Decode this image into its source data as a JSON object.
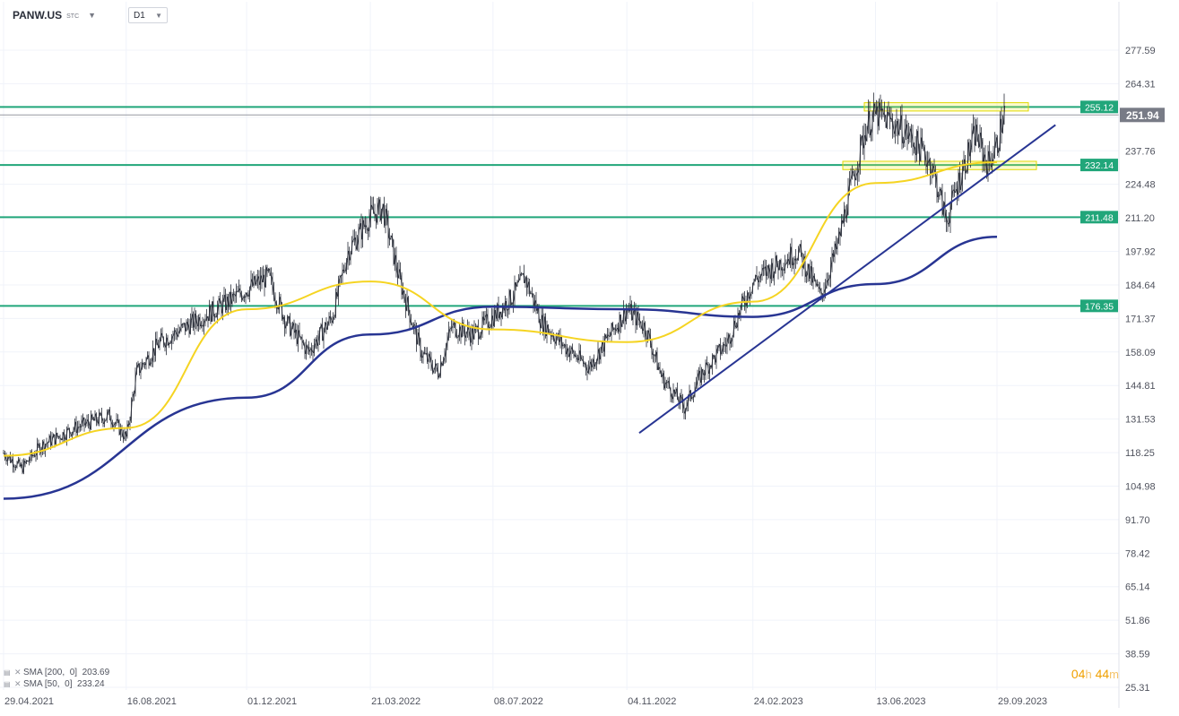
{
  "toolbar": {
    "symbol": "PANW.US",
    "symbol_sub": "STC",
    "timeframe": "D1"
  },
  "legend": {
    "sma200": "SMA [200,  0]  203.69",
    "sma50": "SMA [50,  0]  233.24"
  },
  "countdown": {
    "hours": "04",
    "h_unit": "h",
    "minutes": "44",
    "m_unit": "m"
  },
  "colors": {
    "sma200": "#283593",
    "sma50": "#f5d422",
    "levels": "#21a67a",
    "trendline": "#283593",
    "zones": "#f0ec38",
    "price_tag": "#787b86"
  },
  "chart_data": {
    "type": "candlestick",
    "symbol": "PANW.US",
    "timeframe": "D1",
    "y_axis_ticks": [
      277.59,
      264.31,
      251.03,
      237.76,
      224.48,
      211.2,
      197.92,
      184.64,
      171.37,
      158.09,
      144.81,
      131.53,
      118.25,
      104.98,
      91.7,
      78.42,
      65.14,
      51.86,
      38.59,
      25.31
    ],
    "ylim": [
      25.31,
      277.59
    ],
    "x_ticks": [
      "29.04.2021",
      "16.08.2021",
      "01.12.2021",
      "21.03.2022",
      "08.07.2022",
      "04.11.2022",
      "24.02.2023",
      "13.06.2023",
      "29.09.2023"
    ],
    "last_price": 251.94,
    "horizontal_levels": [
      255.12,
      232.14,
      211.48,
      176.35
    ],
    "price_path": [
      [
        "29.04.2021",
        118
      ],
      [
        "15.05.2021",
        112
      ],
      [
        "01.06.2021",
        121
      ],
      [
        "01.07.2021",
        128
      ],
      [
        "01.08.2021",
        133
      ],
      [
        "16.08.2021",
        124
      ],
      [
        "25.08.2021",
        150
      ],
      [
        "15.09.2021",
        162
      ],
      [
        "15.10.2021",
        170
      ],
      [
        "15.11.2021",
        178
      ],
      [
        "01.12.2021",
        183
      ],
      [
        "20.12.2021",
        188
      ],
      [
        "05.01.2022",
        170
      ],
      [
        "25.01.2022",
        158
      ],
      [
        "15.02.2022",
        172
      ],
      [
        "01.03.2022",
        198
      ],
      [
        "21.03.2022",
        212
      ],
      [
        "01.04.2022",
        215
      ],
      [
        "15.04.2022",
        188
      ],
      [
        "05.05.2022",
        158
      ],
      [
        "20.05.2022",
        150
      ],
      [
        "01.06.2022",
        168
      ],
      [
        "20.06.2022",
        165
      ],
      [
        "08.07.2022",
        172
      ],
      [
        "25.07.2022",
        180
      ],
      [
        "05.08.2022",
        188
      ],
      [
        "20.08.2022",
        170
      ],
      [
        "10.09.2022",
        160
      ],
      [
        "01.10.2022",
        152
      ],
      [
        "20.10.2022",
        165
      ],
      [
        "04.11.2022",
        175
      ],
      [
        "20.11.2022",
        168
      ],
      [
        "05.12.2022",
        148
      ],
      [
        "25.12.2022",
        136
      ],
      [
        "10.01.2023",
        150
      ],
      [
        "01.02.2023",
        162
      ],
      [
        "10.02.2023",
        172
      ],
      [
        "24.02.2023",
        186
      ],
      [
        "15.03.2023",
        192
      ],
      [
        "05.04.2023",
        198
      ],
      [
        "25.04.2023",
        180
      ],
      [
        "10.05.2023",
        200
      ],
      [
        "20.05.2023",
        220
      ],
      [
        "05.06.2023",
        248
      ],
      [
        "13.06.2023",
        252
      ],
      [
        "25.06.2023",
        250
      ],
      [
        "10.07.2023",
        245
      ],
      [
        "20.07.2023",
        240
      ],
      [
        "01.08.2023",
        233
      ],
      [
        "15.08.2023",
        210
      ],
      [
        "25.08.2023",
        225
      ],
      [
        "10.09.2023",
        245
      ],
      [
        "20.09.2023",
        232
      ],
      [
        "29.09.2023",
        240
      ],
      [
        "06.10.2023",
        255
      ]
    ],
    "series": [
      {
        "name": "SMA [200, 0]",
        "value": 203.69,
        "x": [
          "29.04.2021",
          "01.12.2021",
          "21.03.2022",
          "08.07.2022",
          "04.11.2022",
          "24.02.2023",
          "13.06.2023",
          "29.09.2023"
        ],
        "y": [
          100,
          140,
          165,
          176,
          175,
          172,
          185,
          203.69
        ]
      },
      {
        "name": "SMA [50, 0]",
        "value": 233.24,
        "x": [
          "29.04.2021",
          "16.08.2021",
          "01.12.2021",
          "21.03.2022",
          "08.07.2022",
          "04.11.2022",
          "24.02.2023",
          "13.06.2023",
          "29.09.2023"
        ],
        "y": [
          117,
          128,
          175,
          186,
          167,
          162,
          178,
          225,
          233.24
        ]
      }
    ]
  }
}
